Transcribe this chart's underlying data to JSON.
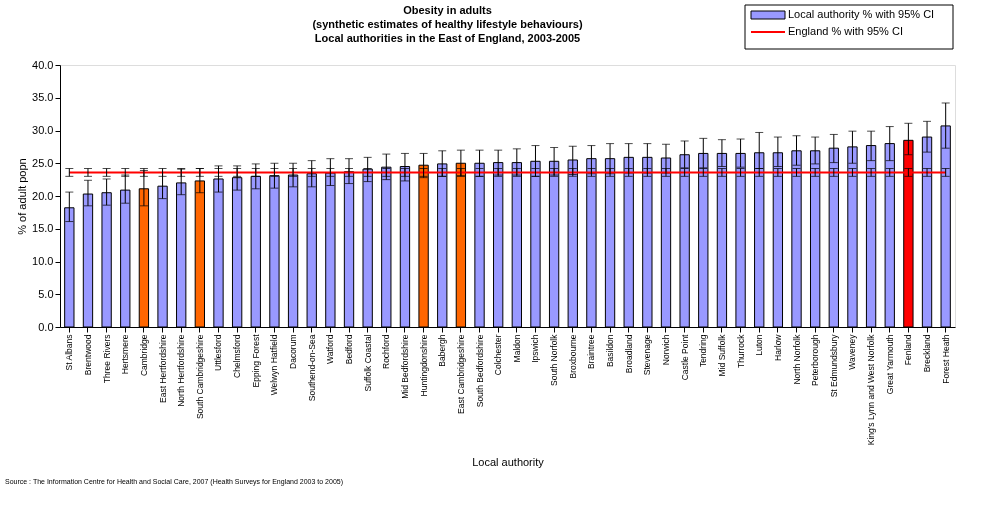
{
  "chart_data": {
    "type": "bar",
    "title": "Obesity in adults",
    "subtitle": "(synthetic estimates of healthy lifestyle behaviours)\nLocal authorities in the East of England, 2003-2005",
    "xlabel": "Local authority",
    "ylabel": "% of adult popn",
    "categories": [
      "St Albans",
      "Brentwood",
      "Three Rivers",
      "Hertsmere",
      "Cambridge",
      "East Hertfordshire",
      "North Hertfordshire",
      "South Cambridgeshire",
      "Uttlesford",
      "Chelmsford",
      "Epping Forest",
      "Welwyn Hatfield",
      "Dacorum",
      "Southend-on-Sea",
      "Watford",
      "Bedford",
      "Suffolk Coastal",
      "Rochford",
      "Mid Bedfordshire",
      "Huntingdonshire",
      "Babergh",
      "East Cambridgeshire",
      "South Bedfordshire",
      "Colchester",
      "Maldon",
      "Ipswich",
      "South Norfolk",
      "Broxbourne",
      "Braintree",
      "Basildon",
      "Broadland",
      "Stevenage",
      "Norwich",
      "Castle Point",
      "Tendring",
      "Mid Suffolk",
      "Thurrock",
      "Luton",
      "Harlow",
      "North Norfolk",
      "Peterborough",
      "St Edmundsbury",
      "Waveney",
      "King's Lynn and West Norfolk",
      "Great Yarmouth",
      "Fenland",
      "Breckland",
      "Forest Heath"
    ],
    "series": [
      {
        "name": "Local authority % with 95% CI",
        "type": "bar",
        "color": "#9999ff",
        "values": [
          18.2,
          20.3,
          20.5,
          20.9,
          21.1,
          21.5,
          22.0,
          22.3,
          22.6,
          22.8,
          23.0,
          23.1,
          23.2,
          23.4,
          23.5,
          23.7,
          24.1,
          24.4,
          24.5,
          24.7,
          24.9,
          25.0,
          25.0,
          25.1,
          25.1,
          25.3,
          25.3,
          25.5,
          25.7,
          25.7,
          25.9,
          25.9,
          25.8,
          26.3,
          26.5,
          26.5,
          26.5,
          26.6,
          26.6,
          26.9,
          26.9,
          27.3,
          27.5,
          27.7,
          28.0,
          28.5,
          29.0,
          30.7
        ],
        "colors": [
          "#9999ff",
          "#9999ff",
          "#9999ff",
          "#9999ff",
          "#ff6600",
          "#9999ff",
          "#9999ff",
          "#ff6600",
          "#9999ff",
          "#9999ff",
          "#9999ff",
          "#9999ff",
          "#9999ff",
          "#9999ff",
          "#9999ff",
          "#9999ff",
          "#9999ff",
          "#9999ff",
          "#9999ff",
          "#ff6600",
          "#9999ff",
          "#ff6600",
          "#9999ff",
          "#9999ff",
          "#9999ff",
          "#9999ff",
          "#9999ff",
          "#9999ff",
          "#9999ff",
          "#9999ff",
          "#9999ff",
          "#9999ff",
          "#9999ff",
          "#9999ff",
          "#9999ff",
          "#9999ff",
          "#9999ff",
          "#9999ff",
          "#9999ff",
          "#9999ff",
          "#9999ff",
          "#9999ff",
          "#9999ff",
          "#9999ff",
          "#9999ff",
          "#ff0000",
          "#9999ff",
          "#9999ff"
        ],
        "errors": [
          [
            16.1,
            20.6
          ],
          [
            18.5,
            22.4
          ],
          [
            18.6,
            22.6
          ],
          [
            18.9,
            23.2
          ],
          [
            18.5,
            23.9
          ],
          [
            19.6,
            23.6
          ],
          [
            20.2,
            24.1
          ],
          [
            20.5,
            24.2
          ],
          [
            20.6,
            24.6
          ],
          [
            20.9,
            24.6
          ],
          [
            21.1,
            24.9
          ],
          [
            21.2,
            25.0
          ],
          [
            21.4,
            25.0
          ],
          [
            21.4,
            25.4
          ],
          [
            21.6,
            25.7
          ],
          [
            21.9,
            25.7
          ],
          [
            22.2,
            25.9
          ],
          [
            22.5,
            26.4
          ],
          [
            22.3,
            26.5
          ],
          [
            22.8,
            26.5
          ],
          [
            23.0,
            26.9
          ],
          [
            23.1,
            27.0
          ],
          [
            23.0,
            27.0
          ],
          [
            23.2,
            27.0
          ],
          [
            23.2,
            27.2
          ],
          [
            23.0,
            27.7
          ],
          [
            23.2,
            27.4
          ],
          [
            23.3,
            27.6
          ],
          [
            23.4,
            27.7
          ],
          [
            23.4,
            28.0
          ],
          [
            23.5,
            28.0
          ],
          [
            23.5,
            28.0
          ],
          [
            23.5,
            27.9
          ],
          [
            24.3,
            28.4
          ],
          [
            24.3,
            28.8
          ],
          [
            24.5,
            28.6
          ],
          [
            24.4,
            28.7
          ],
          [
            24.2,
            29.7
          ],
          [
            24.5,
            29.0
          ],
          [
            24.7,
            29.2
          ],
          [
            24.9,
            29.0
          ],
          [
            25.1,
            29.4
          ],
          [
            25.0,
            29.9
          ],
          [
            25.4,
            29.9
          ],
          [
            25.4,
            30.6
          ],
          [
            26.3,
            31.1
          ],
          [
            26.7,
            31.4
          ],
          [
            27.3,
            34.2
          ]
        ]
      },
      {
        "name": "England % with 95% CI",
        "type": "line",
        "color": "#ff0000",
        "values": [
          23.6,
          23.6,
          23.6,
          23.6,
          23.6,
          23.6,
          23.6,
          23.6,
          23.6,
          23.6,
          23.6,
          23.6,
          23.6,
          23.6,
          23.6,
          23.6,
          23.6,
          23.6,
          23.6,
          23.6,
          23.6,
          23.6,
          23.6,
          23.6,
          23.6,
          23.6,
          23.6,
          23.6,
          23.6,
          23.6,
          23.6,
          23.6,
          23.6,
          23.6,
          23.6,
          23.6,
          23.6,
          23.6,
          23.6,
          23.6,
          23.6,
          23.6,
          23.6,
          23.6,
          23.6,
          23.6,
          23.6,
          23.6
        ],
        "errors": [
          [
            23.0,
            24.2
          ],
          [
            23.0,
            24.2
          ],
          [
            23.0,
            24.2
          ],
          [
            23.0,
            24.2
          ],
          [
            23.0,
            24.2
          ],
          [
            23.0,
            24.2
          ],
          [
            23.0,
            24.2
          ],
          [
            23.0,
            24.2
          ],
          [
            23.0,
            24.2
          ],
          [
            23.0,
            24.2
          ],
          [
            23.0,
            24.2
          ],
          [
            23.0,
            24.2
          ],
          [
            23.0,
            24.2
          ],
          [
            23.0,
            24.2
          ],
          [
            23.0,
            24.2
          ],
          [
            23.0,
            24.2
          ],
          [
            23.0,
            24.2
          ],
          [
            23.0,
            24.2
          ],
          [
            23.0,
            24.2
          ],
          [
            23.0,
            24.2
          ],
          [
            23.0,
            24.2
          ],
          [
            23.0,
            24.2
          ],
          [
            23.0,
            24.2
          ],
          [
            23.0,
            24.2
          ],
          [
            23.0,
            24.2
          ],
          [
            23.0,
            24.2
          ],
          [
            23.0,
            24.2
          ],
          [
            23.0,
            24.2
          ],
          [
            23.0,
            24.2
          ],
          [
            23.0,
            24.2
          ],
          [
            23.0,
            24.2
          ],
          [
            23.0,
            24.2
          ],
          [
            23.0,
            24.2
          ],
          [
            23.0,
            24.2
          ],
          [
            23.0,
            24.2
          ],
          [
            23.0,
            24.2
          ],
          [
            23.0,
            24.2
          ],
          [
            23.0,
            24.2
          ],
          [
            23.0,
            24.2
          ],
          [
            23.0,
            24.2
          ],
          [
            23.0,
            24.2
          ],
          [
            23.0,
            24.2
          ],
          [
            23.0,
            24.2
          ],
          [
            23.0,
            24.2
          ],
          [
            23.0,
            24.2
          ],
          [
            23.0,
            24.2
          ],
          [
            23.0,
            24.2
          ],
          [
            23.0,
            24.2
          ]
        ]
      }
    ],
    "ylim": [
      0,
      40
    ],
    "yticks": [
      {
        "value": 0,
        "label": "0.0"
      },
      {
        "value": 5,
        "label": "5.0"
      },
      {
        "value": 10,
        "label": "10.0"
      },
      {
        "value": 15,
        "label": "15.0"
      },
      {
        "value": 20,
        "label": "20.0"
      },
      {
        "value": 25,
        "label": "25.0"
      },
      {
        "value": 30,
        "label": "30.0"
      },
      {
        "value": 35,
        "label": "35.0"
      },
      {
        "value": 40,
        "label": "40.0"
      }
    ],
    "grid": false,
    "legend": "top right",
    "annotations": [
      "Source : The Information Centre for Health and Social Care, 2007 (Health Surveys for England 2003 to 2005)"
    ]
  }
}
